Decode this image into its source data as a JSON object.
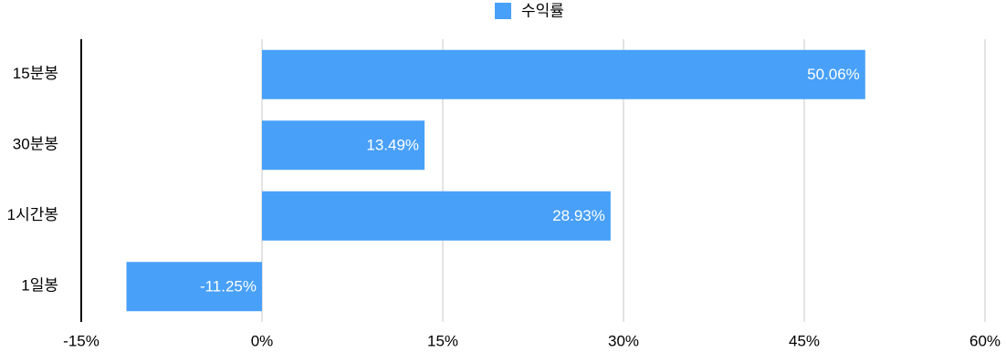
{
  "chart_data": {
    "type": "bar",
    "orientation": "horizontal",
    "categories": [
      "15분봉",
      "30분봉",
      "1시간봉",
      "1일봉"
    ],
    "series": [
      {
        "name": "수익률",
        "color": "#48a0f8",
        "values": [
          50.06,
          13.49,
          28.93,
          -11.25
        ],
        "value_labels": [
          "50.06%",
          "13.49%",
          "28.93%",
          "-11.25%"
        ]
      }
    ],
    "xlim": [
      -15,
      60
    ],
    "xticks": [
      {
        "value": -15,
        "label": "-15%"
      },
      {
        "value": 0,
        "label": "0%"
      },
      {
        "value": 15,
        "label": "15%"
      },
      {
        "value": 30,
        "label": "30%"
      },
      {
        "value": 45,
        "label": "45%"
      },
      {
        "value": 60,
        "label": "60%"
      }
    ],
    "grid": true,
    "legend": "top"
  }
}
